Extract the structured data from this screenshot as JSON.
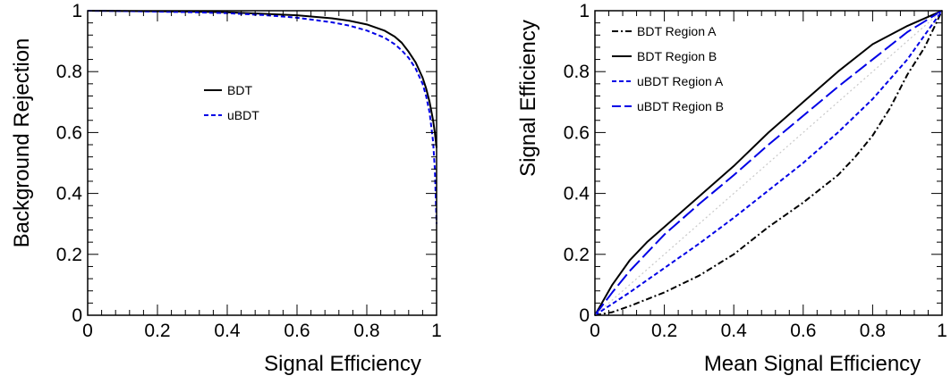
{
  "colors": {
    "black": "#000000",
    "blue": "#0000e6",
    "diag": "#c8c8c8"
  },
  "chart_data": [
    {
      "type": "line",
      "xlabel": "Signal Efficiency",
      "ylabel": "Background Rejection",
      "xlim": [
        0,
        1
      ],
      "ylim": [
        0,
        1
      ],
      "xticks": [
        "0",
        "0.2",
        "0.4",
        "0.6",
        "0.8",
        "1"
      ],
      "yticks": [
        "0",
        "0.2",
        "0.4",
        "0.6",
        "0.8",
        "1"
      ],
      "legend_position": "center",
      "series": [
        {
          "name": "BDT",
          "color": "#000000",
          "dash": "solid",
          "x": [
            0,
            0.1,
            0.2,
            0.3,
            0.4,
            0.5,
            0.6,
            0.7,
            0.75,
            0.8,
            0.85,
            0.88,
            0.9,
            0.92,
            0.94,
            0.96,
            0.97,
            0.98,
            0.99,
            0.995,
            1.0
          ],
          "y": [
            1.0,
            0.999,
            0.998,
            0.997,
            0.995,
            0.99,
            0.985,
            0.975,
            0.967,
            0.955,
            0.935,
            0.915,
            0.895,
            0.865,
            0.83,
            0.78,
            0.745,
            0.7,
            0.64,
            0.6,
            0.55
          ]
        },
        {
          "name": "uBDT",
          "color": "#0000e6",
          "dash": "dashed",
          "x": [
            0,
            0.1,
            0.2,
            0.3,
            0.4,
            0.5,
            0.6,
            0.7,
            0.75,
            0.8,
            0.85,
            0.88,
            0.9,
            0.92,
            0.94,
            0.96,
            0.97,
            0.98,
            0.99,
            0.995,
            1.0
          ],
          "y": [
            1.0,
            0.999,
            0.997,
            0.995,
            0.992,
            0.986,
            0.977,
            0.962,
            0.951,
            0.935,
            0.912,
            0.89,
            0.87,
            0.845,
            0.81,
            0.76,
            0.72,
            0.665,
            0.57,
            0.48,
            0.3
          ]
        }
      ]
    },
    {
      "type": "line",
      "xlabel": "Mean Signal Efficiency",
      "ylabel": "Signal Efficiency",
      "xlim": [
        0,
        1
      ],
      "ylim": [
        0,
        1
      ],
      "xticks": [
        "0",
        "0.2",
        "0.4",
        "0.6",
        "0.8",
        "1"
      ],
      "yticks": [
        "0",
        "0.2",
        "0.4",
        "0.6",
        "0.8",
        "1"
      ],
      "legend_position": "top-left",
      "series": [
        {
          "name": "BDT Region A",
          "color": "#000000",
          "dash": "dash-dot",
          "x": [
            0,
            0.05,
            0.1,
            0.2,
            0.3,
            0.4,
            0.5,
            0.6,
            0.7,
            0.75,
            0.8,
            0.85,
            0.9,
            0.95,
            1.0
          ],
          "y": [
            0,
            0.01,
            0.03,
            0.075,
            0.13,
            0.2,
            0.29,
            0.37,
            0.46,
            0.52,
            0.59,
            0.68,
            0.79,
            0.88,
            1.0
          ]
        },
        {
          "name": "BDT Region B",
          "color": "#000000",
          "dash": "solid",
          "x": [
            0,
            0.05,
            0.1,
            0.15,
            0.2,
            0.3,
            0.4,
            0.5,
            0.6,
            0.7,
            0.8,
            0.9,
            0.95,
            1.0
          ],
          "y": [
            0,
            0.1,
            0.18,
            0.24,
            0.29,
            0.39,
            0.49,
            0.6,
            0.7,
            0.8,
            0.89,
            0.95,
            0.975,
            1.0
          ]
        },
        {
          "name": "uBDT Region A",
          "color": "#0000e6",
          "dash": "dashed",
          "x": [
            0,
            0.1,
            0.2,
            0.3,
            0.4,
            0.5,
            0.6,
            0.7,
            0.8,
            0.9,
            1.0
          ],
          "y": [
            0,
            0.075,
            0.155,
            0.235,
            0.32,
            0.41,
            0.5,
            0.6,
            0.71,
            0.84,
            1.0
          ]
        },
        {
          "name": "uBDT Region B",
          "color": "#0000e6",
          "dash": "long-dashed",
          "x": [
            0,
            0.05,
            0.1,
            0.2,
            0.3,
            0.4,
            0.5,
            0.6,
            0.7,
            0.8,
            0.9,
            1.0
          ],
          "y": [
            0,
            0.075,
            0.145,
            0.265,
            0.365,
            0.46,
            0.56,
            0.655,
            0.75,
            0.84,
            0.93,
            1.0
          ]
        },
        {
          "color": "#c8c8c8",
          "dash": "dotted",
          "x": [
            0,
            1
          ],
          "y": [
            0,
            1
          ]
        }
      ]
    }
  ]
}
